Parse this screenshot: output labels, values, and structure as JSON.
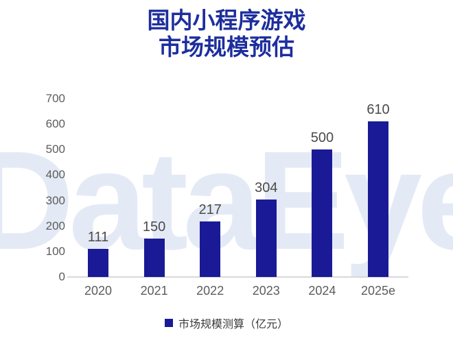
{
  "title": {
    "line1": "国内小程序游戏",
    "line2": "市场规模预估"
  },
  "watermark": "DataEye",
  "legend": {
    "label": "市场规模测算（亿元）"
  },
  "colors": {
    "bar": "#1a1a96",
    "title": "#1d2e9d",
    "axis_tick_label": "#5c5c5c",
    "value_label": "#4a4a4a",
    "axis_line": "#d8d8d8",
    "watermark": "#e4eaf5",
    "background": "#ffffff"
  },
  "chart_data": {
    "type": "bar",
    "title": "国内小程序游戏市场规模预估",
    "categories": [
      "2020",
      "2021",
      "2022",
      "2023",
      "2024",
      "2025e"
    ],
    "values": [
      111,
      150,
      217,
      304,
      500,
      610
    ],
    "series_name": "市场规模测算（亿元）",
    "xlabel": "",
    "ylabel": "",
    "ylim": [
      0,
      700
    ],
    "yticks": [
      0,
      100,
      200,
      300,
      400,
      500,
      600,
      700
    ],
    "grid": false,
    "legend_entries": [
      "市场规模测算（亿元）"
    ],
    "legend_position": "bottom",
    "data_labels": true
  }
}
